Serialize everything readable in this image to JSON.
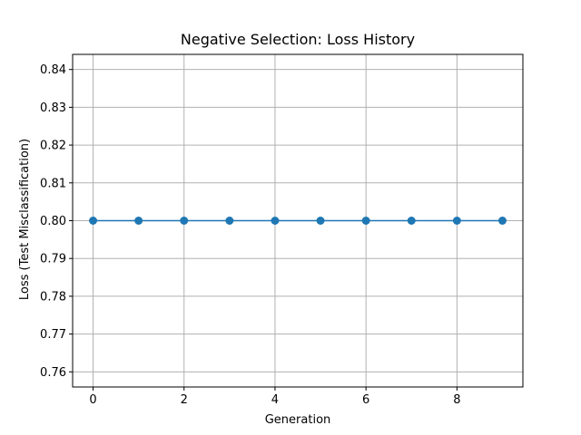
{
  "chart_data": {
    "type": "line",
    "title": "Negative Selection: Loss History",
    "xlabel": "Generation",
    "ylabel": "Loss (Test Misclassification)",
    "x": [
      0,
      1,
      2,
      3,
      4,
      5,
      6,
      7,
      8,
      9
    ],
    "series": [
      {
        "values": [
          0.8,
          0.8,
          0.8,
          0.8,
          0.8,
          0.8,
          0.8,
          0.8,
          0.8,
          0.8
        ],
        "color": "#1f77b4",
        "marker": "circle"
      }
    ],
    "xlim": [
      -0.45,
      9.45
    ],
    "ylim": [
      0.756,
      0.844
    ],
    "xticks": [
      0,
      2,
      4,
      6,
      8
    ],
    "yticks": [
      0.76,
      0.77,
      0.78,
      0.79,
      0.8,
      0.81,
      0.82,
      0.83,
      0.84
    ],
    "ytick_labels": [
      "0.76",
      "0.77",
      "0.78",
      "0.79",
      "0.80",
      "0.81",
      "0.82",
      "0.83",
      "0.84"
    ],
    "grid": true,
    "grid_color": "#b0b0b0"
  }
}
